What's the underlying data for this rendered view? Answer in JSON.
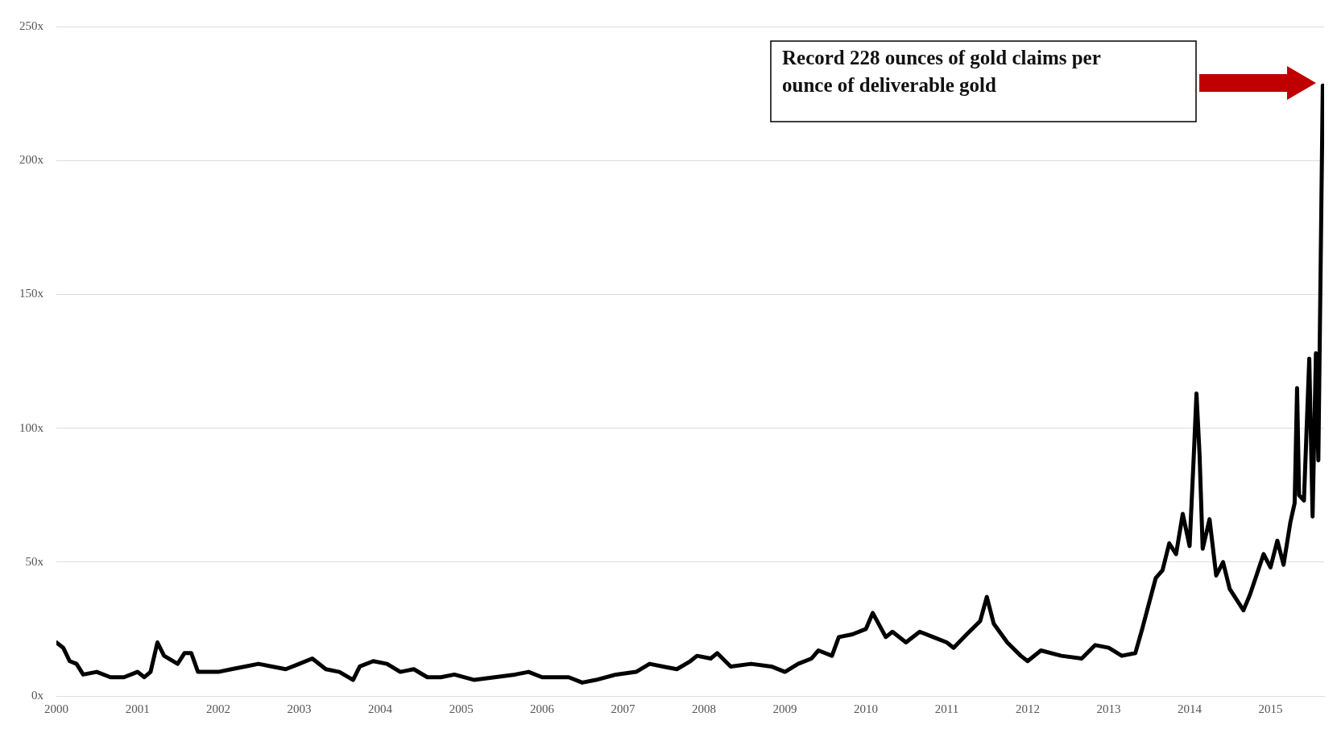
{
  "chart_data": {
    "type": "line",
    "xlim": [
      "2000-01-01",
      "2015-08-31"
    ],
    "ylim": [
      0,
      250
    ],
    "xticks": [
      "2000",
      "2001",
      "2002",
      "2003",
      "2004",
      "2005",
      "2006",
      "2007",
      "2008",
      "2009",
      "2010",
      "2011",
      "2012",
      "2013",
      "2014",
      "2015"
    ],
    "yticks": [
      {
        "value": 0,
        "label": "0x"
      },
      {
        "value": 50,
        "label": "50x"
      },
      {
        "value": 100,
        "label": "100x"
      },
      {
        "value": 150,
        "label": "150x"
      },
      {
        "value": 200,
        "label": "200x"
      },
      {
        "value": 250,
        "label": "250x"
      }
    ],
    "grid": "y",
    "marker": "none",
    "line_style": "solid",
    "legend": false,
    "annotations": [
      "Record 228 ounces of gold claims per ounce of deliverable gold"
    ],
    "series": [
      {
        "color": "#000000",
        "x": [
          "2000-01",
          "2000-02",
          "2000-03",
          "2000-04",
          "2000-05",
          "2000-07",
          "2000-09",
          "2000-11",
          "2001-01",
          "2001-02",
          "2001-03",
          "2001-04",
          "2001-05",
          "2001-07",
          "2001-08",
          "2001-09",
          "2001-10",
          "2002-01",
          "2002-03",
          "2002-05",
          "2002-07",
          "2002-09",
          "2002-11",
          "2003-01",
          "2003-03",
          "2003-05",
          "2003-07",
          "2003-09",
          "2003-10",
          "2003-12",
          "2004-02",
          "2004-04",
          "2004-06",
          "2004-08",
          "2004-10",
          "2004-12",
          "2005-03",
          "2005-06",
          "2005-09",
          "2005-11",
          "2006-01",
          "2006-05",
          "2006-07",
          "2006-09",
          "2006-12",
          "2007-03",
          "2007-05",
          "2007-07",
          "2007-09",
          "2007-11",
          "2007-12",
          "2008-02",
          "2008-03",
          "2008-05",
          "2008-08",
          "2008-11",
          "2009-01",
          "2009-03",
          "2009-05",
          "2009-06",
          "2009-08",
          "2009-09",
          "2009-11",
          "2010-01",
          "2010-02",
          "2010-04",
          "2010-05",
          "2010-07",
          "2010-09",
          "2010-11",
          "2011-01",
          "2011-02",
          "2011-04",
          "2011-06",
          "2011-07",
          "2011-08",
          "2011-10",
          "2011-12",
          "2012-01",
          "2012-03",
          "2012-06",
          "2012-09",
          "2012-11",
          "2013-01",
          "2013-03",
          "2013-05",
          "2013-06",
          "2013-08",
          "2013-09",
          "2013-10",
          "2013-11",
          "2013-12",
          "2014-01",
          "2014-01-20",
          "2014-02",
          "2014-02-15",
          "2014-03",
          "2014-04",
          "2014-05",
          "2014-06",
          "2014-07",
          "2014-09",
          "2014-10",
          "2014-12",
          "2015-01",
          "2015-02",
          "2015-03",
          "2015-04",
          "2015-04-20",
          "2015-05-01",
          "2015-05-10",
          "2015-06",
          "2015-06-25",
          "2015-07-10",
          "2015-07-25",
          "2015-08-05",
          "2015-08-25"
        ],
        "values": [
          20,
          18,
          13,
          12,
          8,
          9,
          7,
          7,
          9,
          7,
          9,
          20,
          15,
          12,
          16,
          16,
          9,
          9,
          10,
          11,
          12,
          11,
          10,
          12,
          14,
          10,
          9,
          6,
          11,
          13,
          12,
          9,
          10,
          7,
          7,
          8,
          6,
          7,
          8,
          9,
          7,
          7,
          5,
          6,
          8,
          9,
          12,
          11,
          10,
          13,
          15,
          14,
          16,
          11,
          12,
          11,
          9,
          12,
          14,
          17,
          15,
          22,
          23,
          25,
          31,
          22,
          24,
          20,
          24,
          22,
          20,
          18,
          23,
          28,
          37,
          27,
          20,
          15,
          13,
          17,
          15,
          14,
          19,
          18,
          15,
          16,
          25,
          44,
          47,
          57,
          53,
          68,
          56,
          90,
          113,
          90,
          55,
          66,
          45,
          50,
          40,
          32,
          38,
          53,
          48,
          58,
          49,
          65,
          72,
          115,
          75,
          73,
          126,
          67,
          128,
          88,
          228
        ]
      }
    ]
  }
}
